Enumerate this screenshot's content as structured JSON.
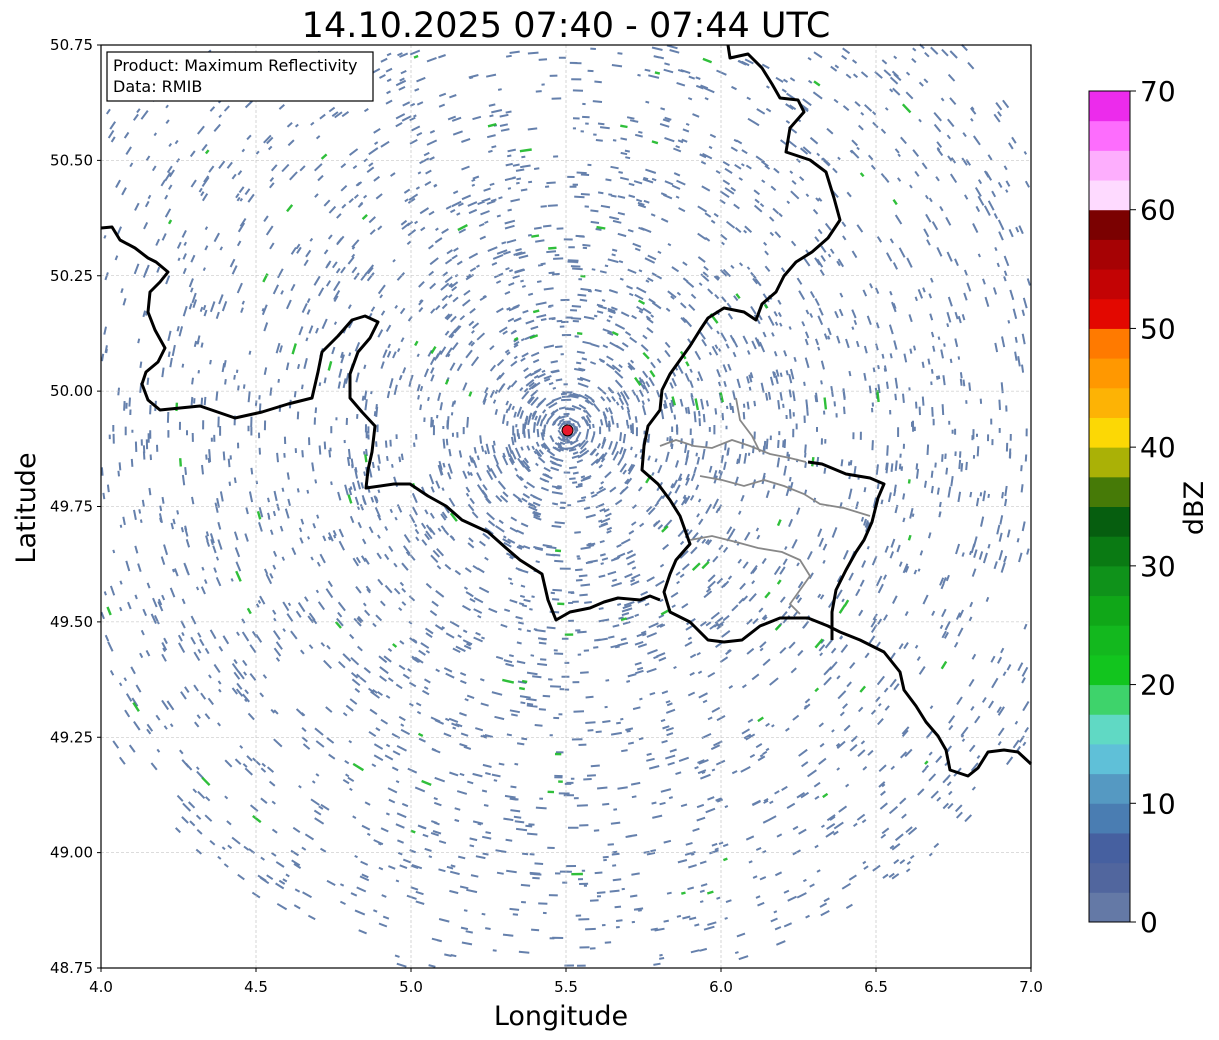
{
  "title": "14.10.2025 07:40 - 07:44 UTC",
  "info": {
    "product_line": "Product: Maximum Reflectivity",
    "data_line": "Data: RMIB"
  },
  "axes": {
    "xlabel": "Longitude",
    "ylabel": "Latitude",
    "xlim": [
      4.0,
      7.0
    ],
    "ylim": [
      48.75,
      50.75
    ],
    "xticks": [
      "4.0",
      "4.5",
      "5.0",
      "5.5",
      "6.0",
      "6.5",
      "7.0"
    ],
    "yticks": [
      "48.75",
      "49.00",
      "49.25",
      "49.50",
      "49.75",
      "50.00",
      "50.25",
      "50.50",
      "50.75"
    ],
    "grid": true
  },
  "radar_site": {
    "lon": 5.505,
    "lat": 49.915,
    "color": "#e8192c"
  },
  "colorbar": {
    "label": "dBZ",
    "range": [
      0,
      70
    ],
    "ticks": [
      "0",
      "10",
      "20",
      "30",
      "40",
      "50",
      "60",
      "70"
    ],
    "colors": [
      "#6479a6",
      "#51669e",
      "#4660a0",
      "#4a7db2",
      "#5599c2",
      "#5fc0d8",
      "#60d9c4",
      "#3ed36b",
      "#12c51e",
      "#13b81e",
      "#10a718",
      "#0f921a",
      "#0a7a13",
      "#065e0f",
      "#467a07",
      "#aab106",
      "#fcd805",
      "#fdb305",
      "#ff9801",
      "#ff7a00",
      "#e30800",
      "#c30304",
      "#a60204",
      "#7b0101",
      "#fedaff",
      "#fdaefd",
      "#fd6dfd",
      "#ec2bec"
    ]
  }
}
